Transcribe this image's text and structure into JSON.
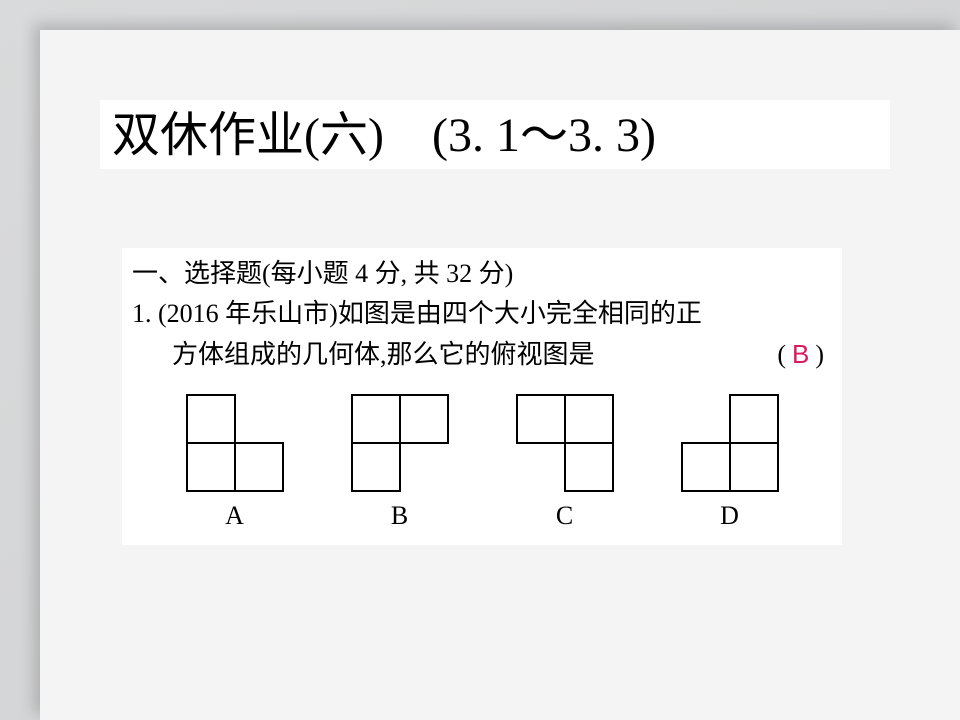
{
  "title": "双休作业(六)　(3. 1～3. 3)",
  "section": "一、选择题(每小题 4 分, 共 32 分)",
  "q1": {
    "num": "1.",
    "line1": "(2016 年乐山市)如图是由四个大小完全相同的正",
    "line2": "方体组成的几何体,那么它的俯视图是",
    "paren_open": "(",
    "paren_close": ")",
    "answer": "B"
  },
  "options": {
    "cell": 48,
    "stroke": "#000000",
    "fill": "#ffffff",
    "items": [
      {
        "label": "A",
        "cols": 2,
        "rows": 2,
        "cells": [
          [
            0,
            0
          ],
          [
            0,
            1
          ],
          [
            1,
            1
          ]
        ]
      },
      {
        "label": "B",
        "cols": 2,
        "rows": 2,
        "cells": [
          [
            0,
            0
          ],
          [
            1,
            0
          ],
          [
            0,
            1
          ]
        ]
      },
      {
        "label": "C",
        "cols": 2,
        "rows": 2,
        "cells": [
          [
            0,
            0
          ],
          [
            1,
            0
          ],
          [
            1,
            1
          ]
        ]
      },
      {
        "label": "D",
        "cols": 2,
        "rows": 2,
        "cells": [
          [
            1,
            0
          ],
          [
            0,
            1
          ],
          [
            1,
            1
          ]
        ]
      }
    ]
  }
}
